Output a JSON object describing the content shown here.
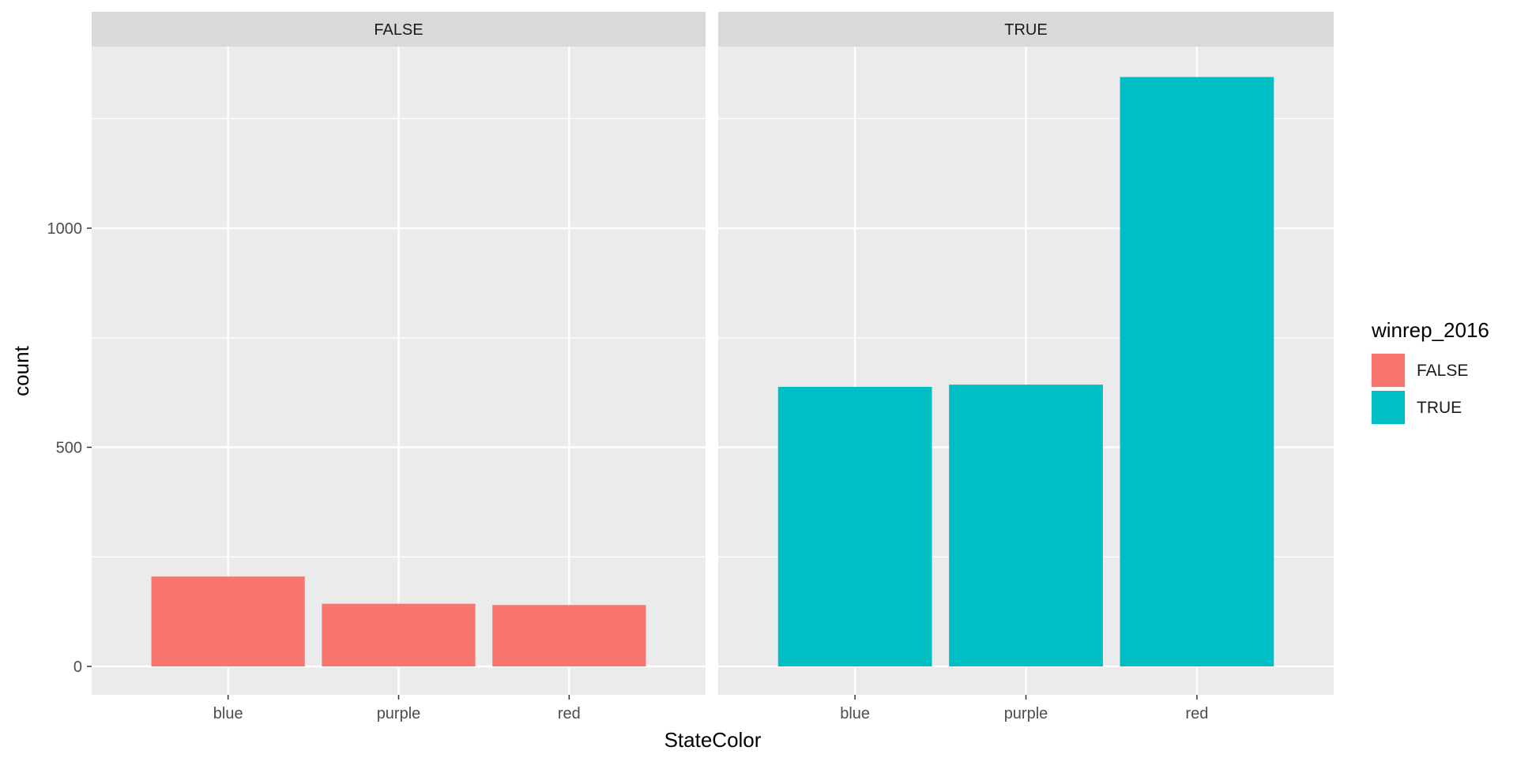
{
  "chart_data": {
    "type": "bar",
    "facet_variable": "winrep_2016",
    "xlabel": "StateColor",
    "ylabel": "count",
    "categories": [
      "blue",
      "purple",
      "red"
    ],
    "ylim": [
      0,
      1350
    ],
    "yticks": [
      0,
      500,
      1000
    ],
    "grid": true,
    "legend": {
      "title": "winrep_2016",
      "placement": "right",
      "entries": [
        {
          "label": "FALSE",
          "color": "#F8766D"
        },
        {
          "label": "TRUE",
          "color": "#00BFC4"
        }
      ]
    },
    "panels": [
      {
        "strip": "FALSE",
        "color": "#F8766D",
        "values": [
          205,
          143,
          140
        ]
      },
      {
        "strip": "TRUE",
        "color": "#00BFC4",
        "values": [
          638,
          643,
          1345
        ]
      }
    ]
  }
}
